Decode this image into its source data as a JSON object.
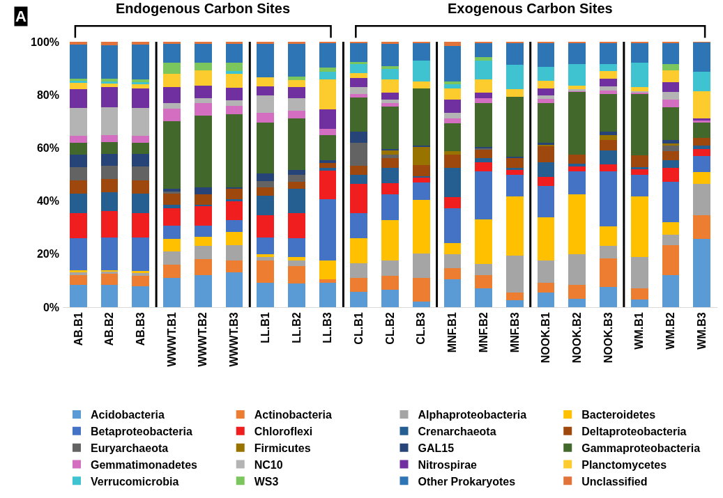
{
  "chart_data": {
    "type": "bar",
    "stacked": true,
    "legend": "bottom",
    "grid": false,
    "categories": [
      "AB.B1",
      "AB.B2",
      "AB.B3",
      "WWWT.B1",
      "WWWT.B2",
      "WWWT.B3",
      "LL.B1",
      "LL.B2",
      "LL.B3",
      "CL.B1",
      "CL.B2",
      "CL.B3",
      "MNF.B1",
      "MNF.B2",
      "MNF.B3",
      "NOOK.B1",
      "NOOK.B2",
      "NOOK.B3",
      "WM.B1",
      "WM.B2",
      "WM.B3"
    ],
    "ylim": [
      0,
      100
    ],
    "yticks": [
      {
        "value": 0,
        "label": "0%"
      },
      {
        "value": 20,
        "label": "20%"
      },
      {
        "value": 40,
        "label": "40%"
      },
      {
        "value": 60,
        "label": "60%"
      },
      {
        "value": 80,
        "label": "80%"
      },
      {
        "value": 100,
        "label": "100%"
      }
    ],
    "annotations": [
      "A",
      "Endogenous Carbon Sites",
      "Exogenous Carbon Sites"
    ],
    "series": [
      {
        "name": "Acidobacteria",
        "color": "#5b9bd5",
        "values": [
          8.3,
          8.5,
          8,
          11,
          12.1,
          13.1,
          9.3,
          9,
          9.3,
          5.9,
          6.5,
          2.1,
          10.4,
          7.2,
          2.5,
          5.5,
          3.1,
          7.6,
          3,
          12.1,
          25.7
        ]
      },
      {
        "name": "Actinobacteria",
        "color": "#ed7d31",
        "values": [
          3.7,
          4,
          3.8,
          5,
          5.9,
          4.6,
          8.2,
          6.6,
          1.1,
          5.1,
          5.3,
          8.9,
          4.4,
          5,
          3,
          3.8,
          5.3,
          10.7,
          4.2,
          11.3,
          8.9
        ]
      },
      {
        "name": "Alphaproteobacteria",
        "color": "#a5a5a5",
        "values": [
          1.1,
          0.8,
          1.3,
          5.1,
          5.2,
          5.7,
          1.5,
          2.1,
          0,
          5.5,
          5.9,
          9.3,
          5.2,
          4.1,
          13.9,
          8.4,
          11.6,
          4.9,
          11.6,
          4,
          11.8
        ]
      },
      {
        "name": "Bacteroidetes",
        "color": "#ffc000",
        "values": [
          0.8,
          0.7,
          0.5,
          4.5,
          3.4,
          4.9,
          1,
          1.1,
          7.3,
          9.4,
          15.2,
          20,
          4.2,
          16.9,
          22.4,
          16.1,
          22.6,
          7.2,
          23,
          4.7,
          4.5
        ]
      },
      {
        "name": "Betaproteobacteria",
        "color": "#4472c4",
        "values": [
          12,
          12.3,
          12.7,
          5,
          4,
          4.4,
          6.2,
          7.1,
          23.1,
          9.5,
          9.5,
          6.7,
          13.2,
          18,
          8,
          11.8,
          8.5,
          20.8,
          8.2,
          15.2,
          6.1
        ]
      },
      {
        "name": "Chloroflexi",
        "color": "#f01e1e",
        "values": [
          9.5,
          10,
          9.2,
          6.8,
          7.4,
          7.2,
          8.4,
          9.5,
          10.7,
          11,
          4.4,
          1.9,
          4,
          3.4,
          1.9,
          3.6,
          1.8,
          2.6,
          1.9,
          5.3,
          2.5
        ]
      },
      {
        "name": "Crenarchaeota",
        "color": "#255e91",
        "values": [
          7.4,
          7,
          7.4,
          1.2,
          0.6,
          0.9,
          7.3,
          9.3,
          1.1,
          3.4,
          5.8,
          0.5,
          11.2,
          1.5,
          0.9,
          5.4,
          1.1,
          5.3,
          0.8,
          2.8,
          1.3
        ]
      },
      {
        "name": "Deltaproteobacteria",
        "color": "#9e480e",
        "values": [
          4.9,
          5,
          4.8,
          4.4,
          4,
          3.7,
          3.2,
          2.6,
          1.7,
          3.4,
          3.5,
          4.2,
          5,
          3.2,
          3.5,
          5.9,
          3.4,
          3.8,
          4.4,
          3.4,
          3.1
        ]
      },
      {
        "name": "Euryarchaeota",
        "color": "#636363",
        "values": [
          5,
          5,
          5.3,
          0.5,
          0,
          0,
          2.4,
          2.5,
          0,
          8.8,
          1.5,
          0,
          0,
          0.6,
          0,
          0,
          0,
          0,
          0,
          2,
          0
        ]
      },
      {
        "name": "Firmicutes",
        "color": "#997300",
        "values": [
          0,
          0,
          0,
          0,
          0,
          0,
          0,
          0,
          0,
          0,
          1.5,
          6.9,
          1.2,
          0,
          0,
          0.7,
          0,
          1.8,
          0,
          0.8,
          0
        ]
      },
      {
        "name": "GAL15",
        "color": "#264478",
        "values": [
          4.7,
          4.5,
          4.8,
          1,
          2.5,
          0.6,
          2.9,
          1.8,
          1.1,
          4.1,
          0.6,
          0.5,
          0,
          0.4,
          0.7,
          0.7,
          0,
          1.4,
          0,
          1.4,
          0
        ]
      },
      {
        "name": "Gammaproteobacteria",
        "color": "#43682b",
        "values": [
          4.5,
          4.3,
          4.2,
          25.5,
          27.2,
          27.5,
          19.1,
          19.5,
          9.3,
          13,
          15.8,
          21.3,
          10.4,
          16.7,
          22.5,
          15.1,
          23.6,
          14.3,
          23.1,
          12.4,
          5.6
        ]
      },
      {
        "name": "Gemmatimonadetes",
        "color": "#d36ec0",
        "values": [
          2.7,
          2.8,
          2.6,
          4.9,
          4.7,
          3.3,
          3.7,
          2.9,
          2.4,
          1.1,
          1.3,
          0,
          1.9,
          1.7,
          0,
          1.5,
          0.6,
          1.2,
          0.6,
          2.8,
          0.8
        ]
      },
      {
        "name": "NC10",
        "color": "#b4b4b4",
        "values": [
          10.5,
          10.5,
          10.4,
          1.9,
          1.7,
          2,
          6.7,
          4.7,
          0,
          2.8,
          1.3,
          0,
          2.1,
          0,
          0,
          1.2,
          0.5,
          1.7,
          0.6,
          2.8,
          0
        ]
      },
      {
        "name": "Nitrospirae",
        "color": "#7030a0",
        "values": [
          7,
          7.5,
          7.4,
          6.1,
          4.8,
          4.8,
          3.2,
          4.3,
          7.4,
          3.3,
          2.7,
          0,
          5,
          2.1,
          0,
          2.7,
          0,
          2.8,
          0,
          3.8,
          0.8
        ]
      },
      {
        "name": "Planctomycetes",
        "color": "#fccb2e",
        "values": [
          2.5,
          1.6,
          1.8,
          5.1,
          5.7,
          5.2,
          3.6,
          2.5,
          11.3,
          1.9,
          4.9,
          2.7,
          4.1,
          4.9,
          2.8,
          2.8,
          1.4,
          2.9,
          1.6,
          4.4,
          10.2
        ]
      },
      {
        "name": "Verrucomicrobia",
        "color": "#3fc3d0",
        "values": [
          0.6,
          0.5,
          0.5,
          0,
          0,
          1.1,
          0,
          0,
          2.8,
          3.5,
          4,
          7.8,
          1.7,
          7.1,
          9.3,
          5.3,
          8.1,
          2.6,
          9,
          0,
          7.3
        ]
      },
      {
        "name": "WS3",
        "color": "#7cc65e",
        "values": [
          0.9,
          1.2,
          1,
          4,
          3,
          3,
          0,
          1.4,
          1.7,
          0.7,
          1,
          0,
          1,
          1.3,
          0,
          0,
          0,
          0,
          0,
          2.5,
          0
        ]
      },
      {
        "name": "Other Prokaryotes",
        "color": "#2e75b6",
        "values": [
          12.9,
          12.6,
          13.3,
          7.2,
          7,
          7.3,
          12.6,
          12.3,
          9.3,
          7.2,
          8.5,
          6.8,
          13.5,
          5.5,
          8.2,
          9.1,
          8,
          8,
          7.6,
          7.9,
          11.2
        ]
      },
      {
        "name": "Unclassified",
        "color": "#e2733a",
        "values": [
          1,
          1.2,
          1,
          0.8,
          0.8,
          0.7,
          0.7,
          0.8,
          0.4,
          0.4,
          0.8,
          0.4,
          1.5,
          0.4,
          0.4,
          0.4,
          0.4,
          0.4,
          0.4,
          0.4,
          0.2
        ]
      }
    ]
  }
}
